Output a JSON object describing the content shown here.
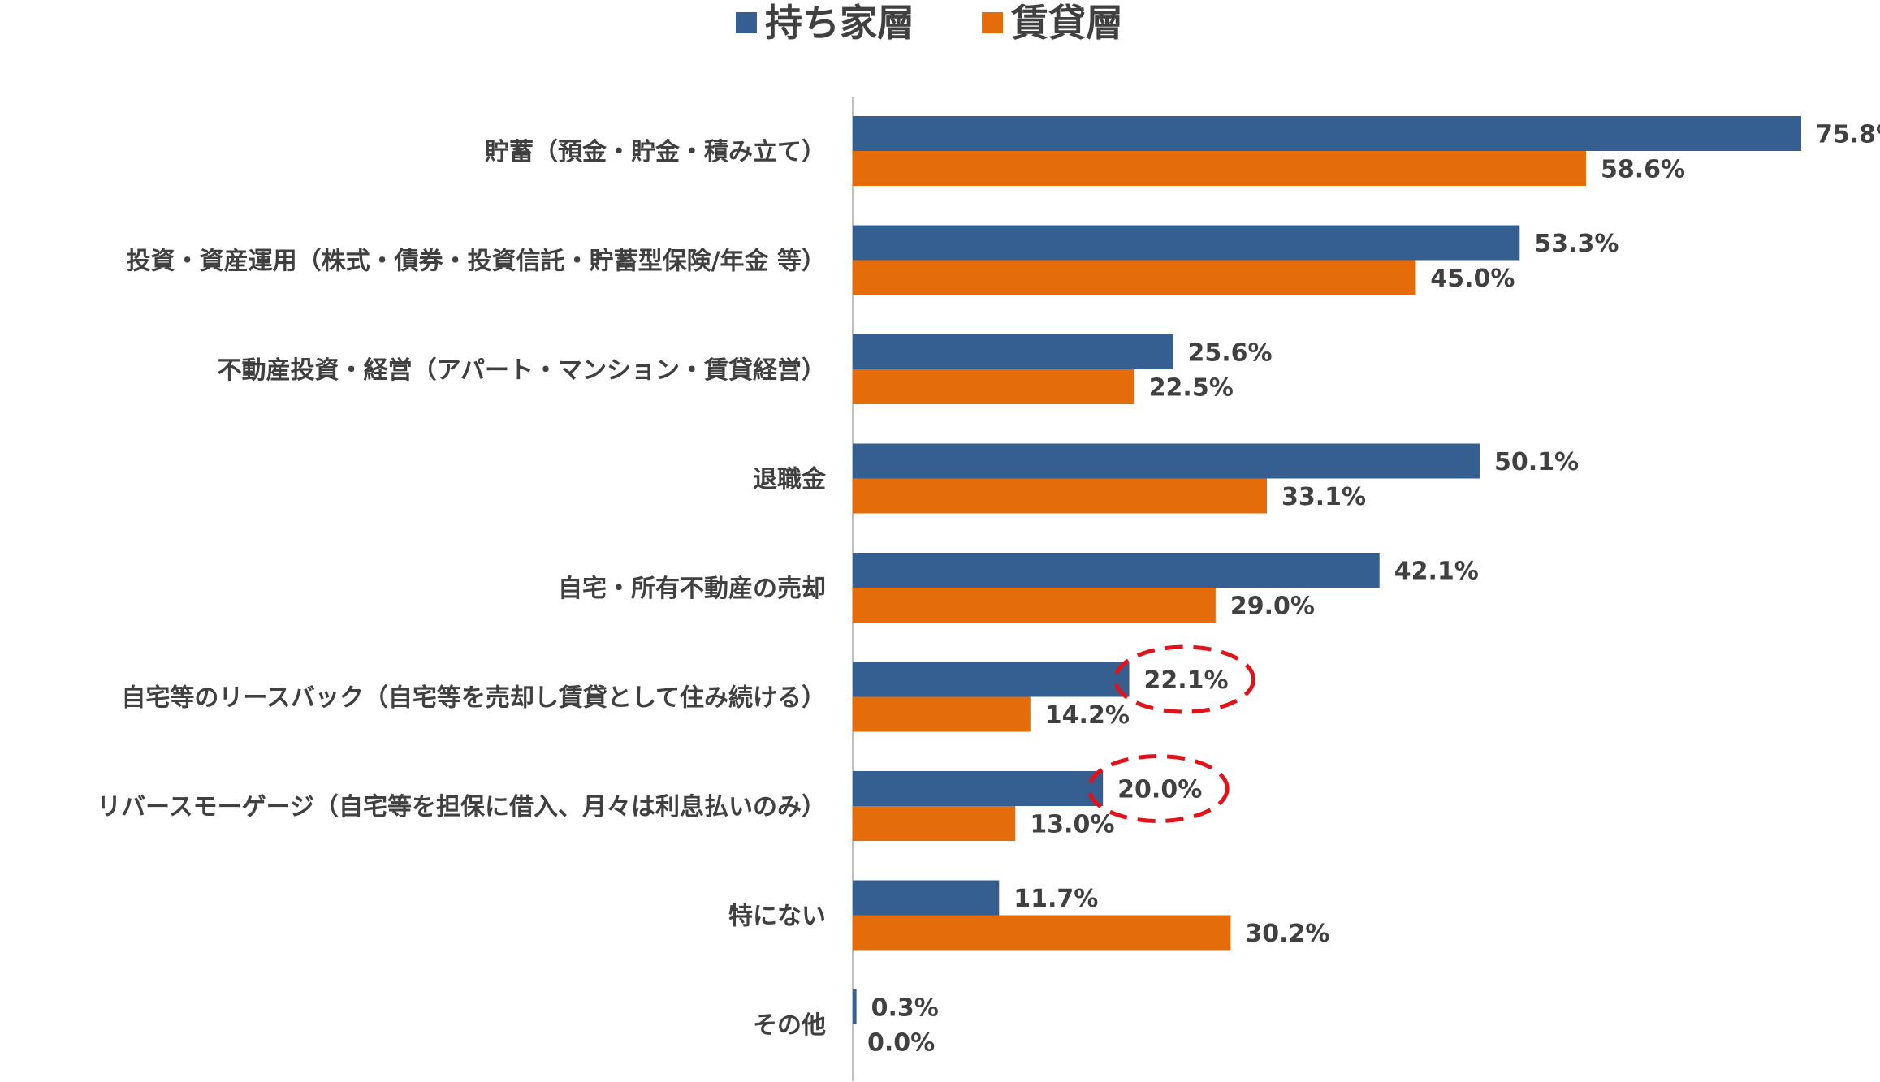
{
  "chart_data": {
    "type": "bar",
    "orientation": "horizontal",
    "legend_position": "top",
    "grid": false,
    "xlim": [
      0,
      75.8
    ],
    "value_format": "0.0%",
    "categories": [
      "貯蓄（預金・貯金・積み立て）",
      "投資・資産運用（株式・債券・投資信託・貯蓄型保険/年金 等）",
      "不動産投資・経営（アパート・マンション・賃貸経営）",
      "退職金",
      "自宅・所有不動産の売却",
      "自宅等のリースバック（自宅等を売却し賃貸として住み続ける）",
      "リバースモーゲージ（自宅等を担保に借入、月々は利息払いのみ）",
      "特にない",
      "その他"
    ],
    "series": [
      {
        "name": "持ち家層",
        "color": "#365F91",
        "values": [
          75.8,
          53.3,
          25.6,
          50.1,
          42.1,
          22.1,
          20.0,
          11.7,
          0.3
        ]
      },
      {
        "name": "賃貸層",
        "color": "#E46C0A",
        "values": [
          58.6,
          45.0,
          22.5,
          33.1,
          29.0,
          14.2,
          13.0,
          30.2,
          0.0
        ]
      }
    ],
    "highlighted": [
      {
        "series": "持ち家層",
        "category_index": 5,
        "color": "#E0131B",
        "style": "dashed-ellipse"
      },
      {
        "series": "持ち家層",
        "category_index": 6,
        "color": "#E0131B",
        "style": "dashed-ellipse"
      }
    ]
  }
}
